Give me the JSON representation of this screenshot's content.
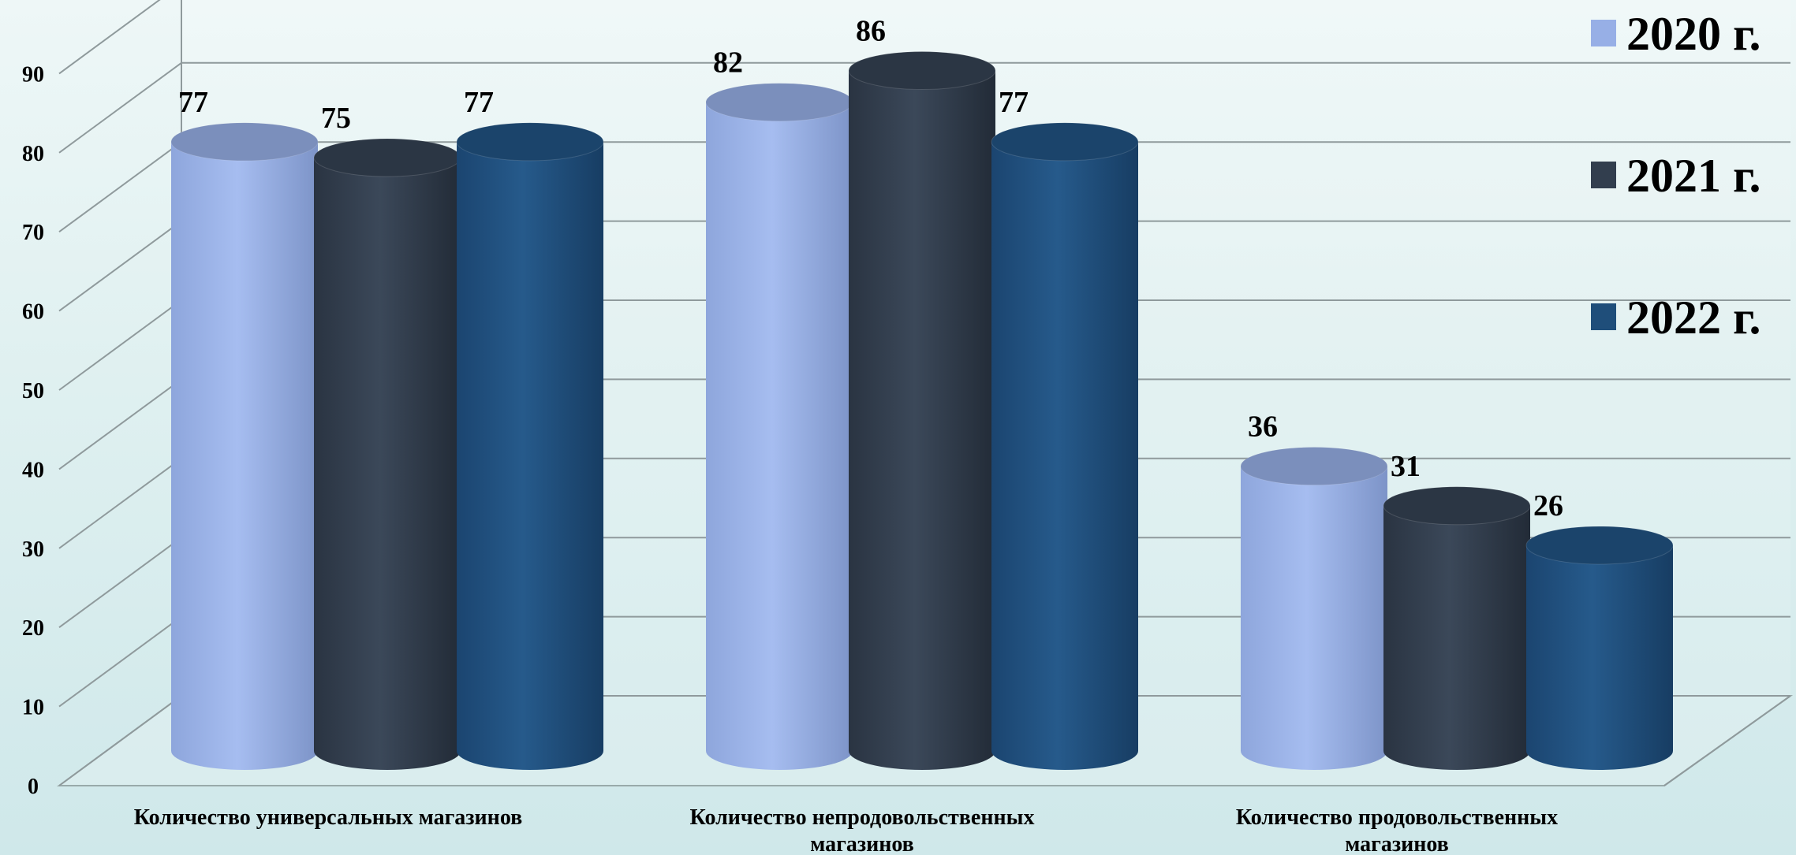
{
  "chart_data": {
    "type": "bar",
    "style": "3d-cylinder",
    "categories": [
      [
        "Количество универсальных магазинов"
      ],
      [
        "Количество непродовольственных",
        "магазинов"
      ],
      [
        "Количество продовольственных",
        "магазинов"
      ]
    ],
    "series": [
      {
        "name": "2020 г.",
        "color": "#97afe6",
        "values": [
          77,
          82,
          36
        ]
      },
      {
        "name": "2021 г.",
        "color": "#323e4e",
        "values": [
          75,
          86,
          31
        ]
      },
      {
        "name": "2022 г.",
        "color": "#1f4e7a",
        "values": [
          77,
          77,
          26
        ]
      }
    ],
    "ylim": [
      0,
      90
    ],
    "yticks": [
      0,
      10,
      20,
      30,
      40,
      50,
      60,
      70,
      80,
      90
    ],
    "grid": true,
    "legend_position": "right",
    "title": "",
    "xlabel": "",
    "ylabel": ""
  }
}
